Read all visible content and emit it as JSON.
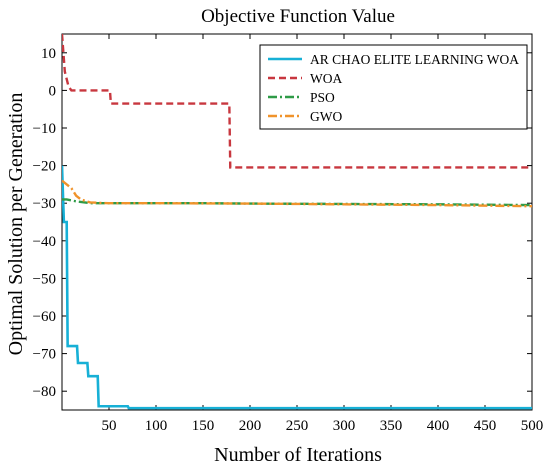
{
  "chart_data": {
    "type": "line",
    "title": "Objective Function Value",
    "xlabel": "Number of Iterations",
    "ylabel": "Optimal Solution per Generation",
    "xlim": [
      0,
      500
    ],
    "ylim": [
      -85,
      15
    ],
    "xticks": [
      50,
      100,
      150,
      200,
      250,
      300,
      350,
      400,
      450,
      500
    ],
    "yticks": [
      10,
      0,
      -10,
      -20,
      -30,
      -40,
      -50,
      -60,
      -70,
      -80
    ],
    "grid": false,
    "legend_position": "top-right",
    "series": [
      {
        "name": "AR CHAO ELITE LEARNING WOA",
        "color": "#17b0d6",
        "style": "solid",
        "points": [
          [
            0,
            -20
          ],
          [
            2,
            -35
          ],
          [
            5,
            -35
          ],
          [
            6,
            -68
          ],
          [
            16,
            -68
          ],
          [
            17,
            -72.5
          ],
          [
            27,
            -72.5
          ],
          [
            28,
            -76
          ],
          [
            38,
            -76
          ],
          [
            39,
            -84
          ],
          [
            70,
            -84
          ],
          [
            71,
            -84.5
          ],
          [
            500,
            -84.5
          ]
        ]
      },
      {
        "name": "WOA",
        "color": "#c8373f",
        "style": "dashed",
        "points": [
          [
            0,
            15
          ],
          [
            3,
            5
          ],
          [
            7,
            1
          ],
          [
            10,
            0
          ],
          [
            51,
            0
          ],
          [
            52,
            -3.5
          ],
          [
            178,
            -3.5
          ],
          [
            179,
            -20.5
          ],
          [
            500,
            -20.5
          ]
        ]
      },
      {
        "name": "PSO",
        "color": "#2e9b47",
        "style": "dashdot",
        "points": [
          [
            0,
            -29
          ],
          [
            5,
            -29
          ],
          [
            15,
            -29.5
          ],
          [
            30,
            -30
          ],
          [
            50,
            -30
          ],
          [
            150,
            -30
          ],
          [
            200,
            -30.1
          ],
          [
            300,
            -30.2
          ],
          [
            400,
            -30.3
          ],
          [
            500,
            -30.5
          ]
        ]
      },
      {
        "name": "GWO",
        "color": "#f0932b",
        "style": "dashdot",
        "points": [
          [
            0,
            -24
          ],
          [
            5,
            -25
          ],
          [
            10,
            -26
          ],
          [
            15,
            -28
          ],
          [
            20,
            -29
          ],
          [
            30,
            -29.8
          ],
          [
            50,
            -30
          ],
          [
            100,
            -30
          ],
          [
            200,
            -30.1
          ],
          [
            300,
            -30.3
          ],
          [
            400,
            -30.5
          ],
          [
            500,
            -30.8
          ]
        ]
      }
    ]
  }
}
